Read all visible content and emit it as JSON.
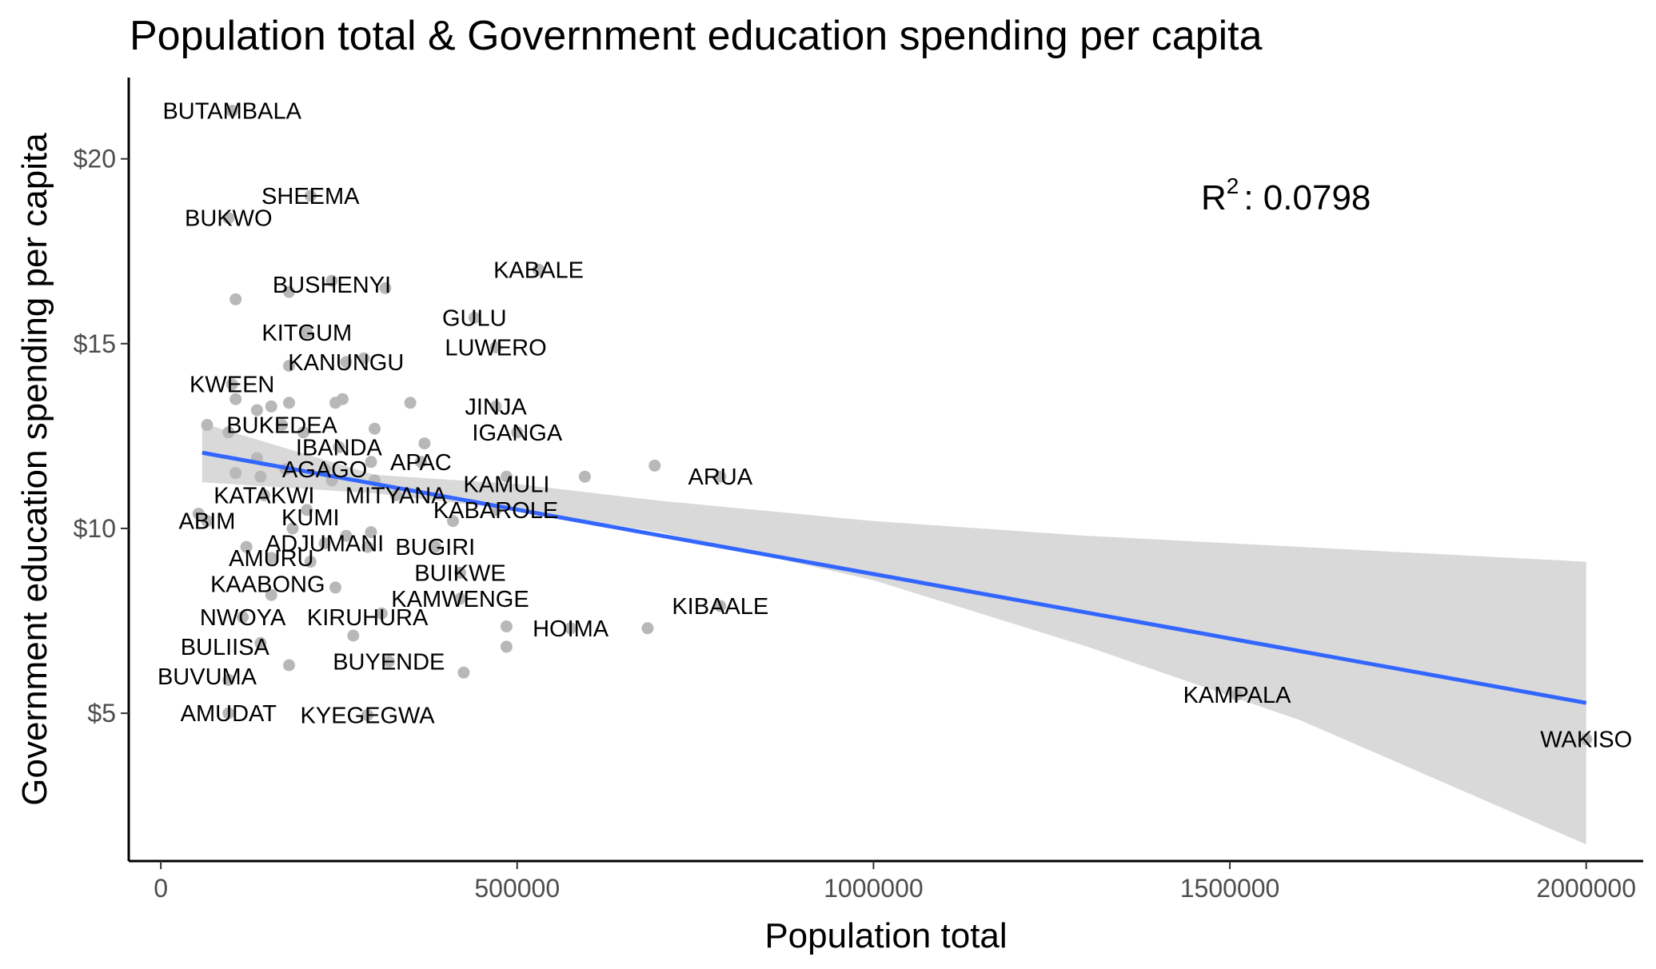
{
  "chart_data": {
    "type": "scatter",
    "title": "Population total & Government education spending per capita",
    "xlabel": "Population total",
    "ylabel": "Government education spending per capita",
    "xlim": [
      -45000,
      2080000
    ],
    "ylim": [
      1.0,
      22.2
    ],
    "x_ticks": [
      0,
      500000,
      1000000,
      1500000,
      2000000
    ],
    "x_tick_labels": [
      "0",
      "500000",
      "1000000",
      "1500000",
      "2000000"
    ],
    "y_ticks": [
      5,
      10,
      15,
      20
    ],
    "y_tick_labels": [
      "$5",
      "$10",
      "$15",
      "$20"
    ],
    "grid": false,
    "r2_label": "R",
    "r2_sup": "2",
    "r2_value": ": 0.0798",
    "regression": {
      "x": [
        58000,
        2000000
      ],
      "y": [
        12.05,
        5.28
      ]
    },
    "confidence_band": {
      "x": [
        58000,
        300000,
        500000,
        700000,
        1000000,
        1300000,
        1600000,
        2000000
      ],
      "upper": [
        12.85,
        11.45,
        11.2,
        10.75,
        10.2,
        9.8,
        9.5,
        9.1
      ],
      "lower": [
        11.25,
        10.95,
        10.5,
        9.9,
        8.6,
        6.8,
        4.8,
        1.45
      ]
    },
    "labeled_points": [
      {
        "name": "BUTAMBALA",
        "x": 100000,
        "y": 21.3
      },
      {
        "name": "SHEEMA",
        "x": 210000,
        "y": 19.0
      },
      {
        "name": "BUKWO",
        "x": 95000,
        "y": 18.4
      },
      {
        "name": "KABALE",
        "x": 530000,
        "y": 17.0
      },
      {
        "name": "BUSHENYI",
        "x": 240000,
        "y": 16.6
      },
      {
        "name": "GULU",
        "x": 440000,
        "y": 15.7
      },
      {
        "name": "KITGUM",
        "x": 205000,
        "y": 15.3
      },
      {
        "name": "LUWERO",
        "x": 470000,
        "y": 14.9
      },
      {
        "name": "KANUNGU",
        "x": 260000,
        "y": 14.5
      },
      {
        "name": "KWEEN",
        "x": 100000,
        "y": 13.9
      },
      {
        "name": "JINJA",
        "x": 470000,
        "y": 13.3
      },
      {
        "name": "BUKEDEA",
        "x": 170000,
        "y": 12.8
      },
      {
        "name": "IGANGA",
        "x": 500000,
        "y": 12.6
      },
      {
        "name": "IBANDA",
        "x": 250000,
        "y": 12.2
      },
      {
        "name": "APAC",
        "x": 365000,
        "y": 11.8
      },
      {
        "name": "AGAGO",
        "x": 230000,
        "y": 11.6
      },
      {
        "name": "ARUA",
        "x": 785000,
        "y": 11.4
      },
      {
        "name": "KAMULI",
        "x": 485000,
        "y": 11.2
      },
      {
        "name": "KATAKWI",
        "x": 145000,
        "y": 10.9
      },
      {
        "name": "MITYANA",
        "x": 330000,
        "y": 10.9
      },
      {
        "name": "KABAROLE",
        "x": 470000,
        "y": 10.5
      },
      {
        "name": "ABIM",
        "x": 65000,
        "y": 10.2
      },
      {
        "name": "KUMI",
        "x": 210000,
        "y": 10.3
      },
      {
        "name": "ADJUMANI",
        "x": 230000,
        "y": 9.6
      },
      {
        "name": "BUGIRI",
        "x": 385000,
        "y": 9.5
      },
      {
        "name": "AMURU",
        "x": 155000,
        "y": 9.2
      },
      {
        "name": "BUIKWE",
        "x": 420000,
        "y": 8.8
      },
      {
        "name": "KAABONG",
        "x": 150000,
        "y": 8.5
      },
      {
        "name": "KAMWENGE",
        "x": 420000,
        "y": 8.1
      },
      {
        "name": "KIBAALE",
        "x": 785000,
        "y": 7.9
      },
      {
        "name": "NWOYA",
        "x": 115000,
        "y": 7.6
      },
      {
        "name": "KIRUHURA",
        "x": 290000,
        "y": 7.6
      },
      {
        "name": "HOIMA",
        "x": 575000,
        "y": 7.3
      },
      {
        "name": "BULIISA",
        "x": 90000,
        "y": 6.8
      },
      {
        "name": "BUYENDE",
        "x": 320000,
        "y": 6.4
      },
      {
        "name": "BUVUMA",
        "x": 65000,
        "y": 6.0
      },
      {
        "name": "KAMPALA",
        "x": 1510000,
        "y": 5.5
      },
      {
        "name": "AMUDAT",
        "x": 95000,
        "y": 5.0
      },
      {
        "name": "KYEGEGWA",
        "x": 290000,
        "y": 4.95
      },
      {
        "name": "WAKISO",
        "x": 2000000,
        "y": 4.3
      }
    ],
    "points": [
      [
        100000,
        21.3
      ],
      [
        210000,
        19.0
      ],
      [
        95000,
        18.4
      ],
      [
        530000,
        17.0
      ],
      [
        180000,
        16.4
      ],
      [
        105000,
        16.2
      ],
      [
        240000,
        16.7
      ],
      [
        315000,
        16.5
      ],
      [
        440000,
        15.7
      ],
      [
        205000,
        15.3
      ],
      [
        470000,
        14.9
      ],
      [
        180000,
        14.4
      ],
      [
        260000,
        14.5
      ],
      [
        285000,
        14.6
      ],
      [
        100000,
        13.9
      ],
      [
        105000,
        13.5
      ],
      [
        135000,
        13.2
      ],
      [
        155000,
        13.3
      ],
      [
        180000,
        13.4
      ],
      [
        245000,
        13.4
      ],
      [
        255000,
        13.5
      ],
      [
        350000,
        13.4
      ],
      [
        65000,
        12.8
      ],
      [
        95000,
        12.6
      ],
      [
        170000,
        12.8
      ],
      [
        200000,
        12.6
      ],
      [
        300000,
        12.7
      ],
      [
        470000,
        13.3
      ],
      [
        500000,
        12.6
      ],
      [
        370000,
        12.3
      ],
      [
        250000,
        12.2
      ],
      [
        135000,
        11.9
      ],
      [
        230000,
        11.6
      ],
      [
        295000,
        11.8
      ],
      [
        365000,
        11.8
      ],
      [
        105000,
        11.5
      ],
      [
        140000,
        11.4
      ],
      [
        175000,
        11.6
      ],
      [
        240000,
        11.3
      ],
      [
        300000,
        11.3
      ],
      [
        485000,
        11.4
      ],
      [
        595000,
        11.4
      ],
      [
        693000,
        11.7
      ],
      [
        785000,
        11.4
      ],
      [
        145000,
        10.9
      ],
      [
        330000,
        10.9
      ],
      [
        53000,
        10.4
      ],
      [
        205000,
        10.5
      ],
      [
        410000,
        10.2
      ],
      [
        470000,
        10.5
      ],
      [
        65000,
        10.2
      ],
      [
        185000,
        10.0
      ],
      [
        260000,
        9.8
      ],
      [
        295000,
        9.9
      ],
      [
        290000,
        9.5
      ],
      [
        120000,
        9.5
      ],
      [
        230000,
        9.6
      ],
      [
        385000,
        9.5
      ],
      [
        155000,
        9.2
      ],
      [
        210000,
        9.1
      ],
      [
        420000,
        8.8
      ],
      [
        155000,
        8.2
      ],
      [
        245000,
        8.4
      ],
      [
        420000,
        8.1
      ],
      [
        115000,
        7.6
      ],
      [
        310000,
        7.7
      ],
      [
        270000,
        7.1
      ],
      [
        485000,
        7.35
      ],
      [
        575000,
        7.3
      ],
      [
        683000,
        7.3
      ],
      [
        785000,
        7.9
      ],
      [
        140000,
        6.9
      ],
      [
        485000,
        6.8
      ],
      [
        180000,
        6.3
      ],
      [
        320000,
        6.4
      ],
      [
        425000,
        6.1
      ],
      [
        95000,
        5.9
      ],
      [
        1510000,
        5.5
      ],
      [
        95000,
        5.0
      ],
      [
        290000,
        4.95
      ],
      [
        2000000,
        4.3
      ]
    ]
  }
}
